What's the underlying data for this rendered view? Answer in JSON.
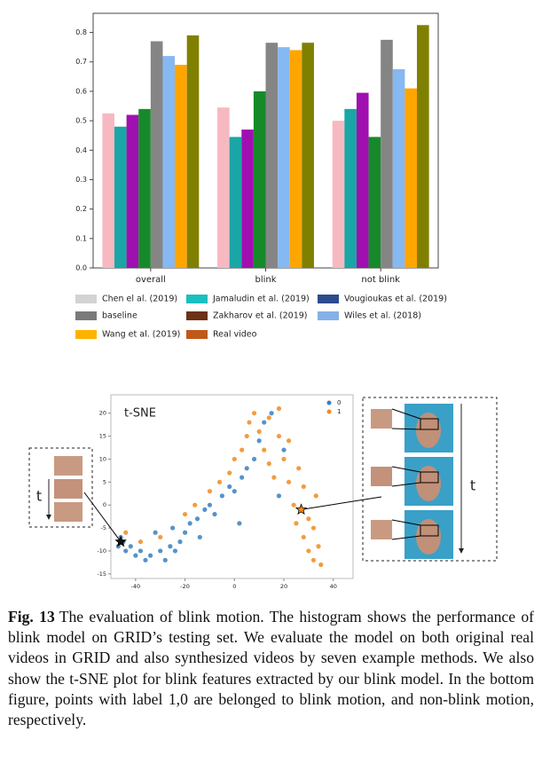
{
  "chart_data": [
    {
      "type": "bar",
      "categories": [
        "overall",
        "blink",
        "not blink"
      ],
      "ylim": [
        0,
        0.865
      ],
      "yticks": [
        {
          "value": 0,
          "label": "0.0"
        },
        0.1,
        0.2,
        0.3,
        0.4,
        0.5,
        0.6,
        0.7,
        0.8
      ],
      "series": [
        {
          "name": "Chen el al. (2019)",
          "color": "#f7b9c1",
          "legend_color": "#d3d3d3",
          "values": [
            0.525,
            0.545,
            0.5
          ]
        },
        {
          "name": "Jamaludin et al. (2019)",
          "color": "#1aa6a6",
          "legend_color": "#1abfbf",
          "values": [
            0.48,
            0.445,
            0.54
          ]
        },
        {
          "name": "Vougioukas et al. (2019)",
          "color": "#a010b0",
          "legend_color": "#2c4a8c",
          "values": [
            0.52,
            0.47,
            0.595
          ]
        },
        {
          "name": "baseline",
          "color": "#168a2a",
          "legend_color": "#7a7a7a",
          "values": [
            0.54,
            0.6,
            0.445
          ]
        },
        {
          "name": "Zakharov et al. (2019)",
          "color": "#858585",
          "legend_color": "#6b3216",
          "values": [
            0.77,
            0.765,
            0.775
          ]
        },
        {
          "name": "Wiles et al. (2018)",
          "color": "#86b8f2",
          "legend_color": "#86b0e8",
          "values": [
            0.72,
            0.75,
            0.675
          ]
        },
        {
          "name": "Wang et al. (2019)",
          "color": "#ffa500",
          "legend_color": "#ffb300",
          "values": [
            0.69,
            0.74,
            0.61
          ]
        },
        {
          "name": "Real video",
          "color": "#808000",
          "legend_color": "#c0581a",
          "values": [
            0.79,
            0.765,
            0.825
          ]
        }
      ]
    },
    {
      "type": "scatter",
      "title": "t-SNE",
      "xlim": [
        -50,
        48
      ],
      "ylim": [
        -16,
        24
      ],
      "xticks": [
        -40,
        -20,
        0,
        20,
        40
      ],
      "yticks": [
        -15,
        -10,
        -5,
        0,
        5,
        10,
        15,
        20
      ],
      "series": [
        {
          "name": "0",
          "color": "#3a7fc0",
          "x": [
            -47,
            -45,
            -44,
            -42,
            -46,
            -40,
            -38,
            -36,
            -34,
            -30,
            -28,
            -26,
            -24,
            -22,
            -20,
            -18,
            -15,
            -12,
            -10,
            -8,
            -5,
            -2,
            0,
            3,
            5,
            8,
            10,
            12,
            15,
            -32,
            -25,
            -14,
            2,
            18,
            20
          ],
          "y": [
            -9,
            -8,
            -10,
            -9,
            -7,
            -11,
            -10,
            -12,
            -11,
            -10,
            -12,
            -9,
            -10,
            -8,
            -6,
            -4,
            -3,
            -1,
            0,
            -2,
            2,
            4,
            3,
            6,
            8,
            10,
            14,
            18,
            20,
            -6,
            -5,
            -7,
            -4,
            2,
            12
          ]
        },
        {
          "name": "1",
          "color": "#f28a1e",
          "x": [
            -44,
            -38,
            -30,
            -20,
            -16,
            -10,
            -6,
            -2,
            0,
            3,
            5,
            6,
            8,
            10,
            12,
            14,
            16,
            18,
            20,
            22,
            24,
            25,
            28,
            30,
            32,
            34,
            30,
            33,
            28,
            26,
            22,
            14,
            18,
            32,
            35
          ],
          "y": [
            -6,
            -8,
            -7,
            -2,
            0,
            3,
            5,
            7,
            10,
            12,
            15,
            18,
            20,
            16,
            12,
            9,
            6,
            15,
            10,
            5,
            0,
            -4,
            -7,
            -10,
            -12,
            -9,
            -3,
            2,
            4,
            8,
            14,
            19,
            21,
            -5,
            -13
          ]
        }
      ],
      "highlight_points": {
        "x": [
          -46,
          27
        ],
        "y": [
          -8,
          -1
        ]
      },
      "annotations": [
        "t",
        "t"
      ]
    }
  ],
  "caption": {
    "label": "Fig. 13",
    "text": "The evaluation of blink motion. The histogram shows the performance of blink model on GRID’s testing set. We evaluate the model on both original real videos in GRID and also synthesized videos by seven example methods. We also show the t-SNE plot for blink features extracted by our blink model. In the bottom figure, points with label 1,0 are belonged to blink motion, and non-blink motion, respectively."
  }
}
